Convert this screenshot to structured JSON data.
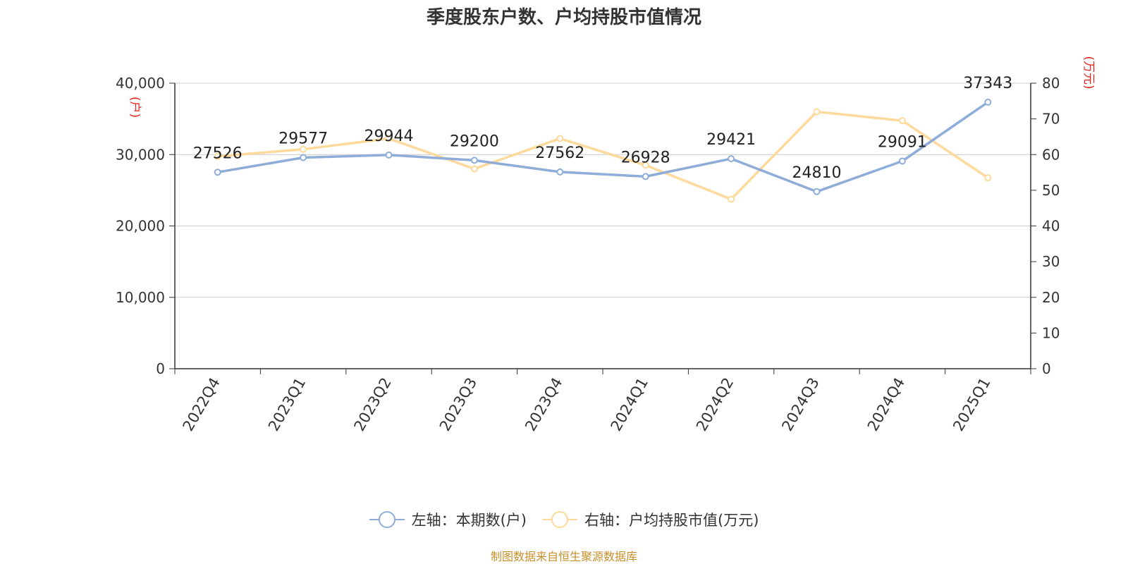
{
  "title": "季度股东户数、户均持股市值情况",
  "source": "制图数据来自恒生聚源数据库",
  "colors": {
    "left_series": "#8fadd9",
    "right_series": "#fdd99b",
    "axis_unit": "#e8221b",
    "grid": "#cccccc",
    "axis": "#333333",
    "source": "#c8902a"
  },
  "chart_data": {
    "type": "line",
    "title": "季度股东户数、户均持股市值情况",
    "categories": [
      "2022Q4",
      "2023Q1",
      "2023Q2",
      "2023Q3",
      "2023Q4",
      "2024Q1",
      "2024Q2",
      "2024Q3",
      "2024Q4",
      "2025Q1"
    ],
    "left_axis": {
      "unit": "(户)",
      "ylim": [
        0,
        40000
      ],
      "ticks": [
        0,
        10000,
        20000,
        30000,
        40000
      ],
      "tick_labels": [
        "0",
        "10,000",
        "20,000",
        "30,000",
        "40,000"
      ]
    },
    "right_axis": {
      "unit": "(万元)",
      "ylim": [
        0,
        80
      ],
      "ticks": [
        0,
        10,
        20,
        30,
        40,
        50,
        60,
        70,
        80
      ],
      "tick_labels": [
        "0",
        "10",
        "20",
        "30",
        "40",
        "50",
        "60",
        "70",
        "80"
      ]
    },
    "series": [
      {
        "name": "左轴：本期数(户)",
        "axis": "left",
        "values": [
          27526,
          29577,
          29944,
          29200,
          27562,
          26928,
          29421,
          24810,
          29091,
          37343
        ],
        "labels": [
          "27526",
          "29577",
          "29944",
          "29200",
          "27562",
          "26928",
          "29421",
          "24810",
          "29091",
          "37343"
        ]
      },
      {
        "name": "右轴：户均持股市值(万元)",
        "axis": "right",
        "values": [
          59.5,
          61.5,
          64.5,
          56,
          64.5,
          57,
          47.5,
          72,
          69.5,
          53.5
        ]
      }
    ],
    "grid": true,
    "legend_position": "bottom-center"
  }
}
